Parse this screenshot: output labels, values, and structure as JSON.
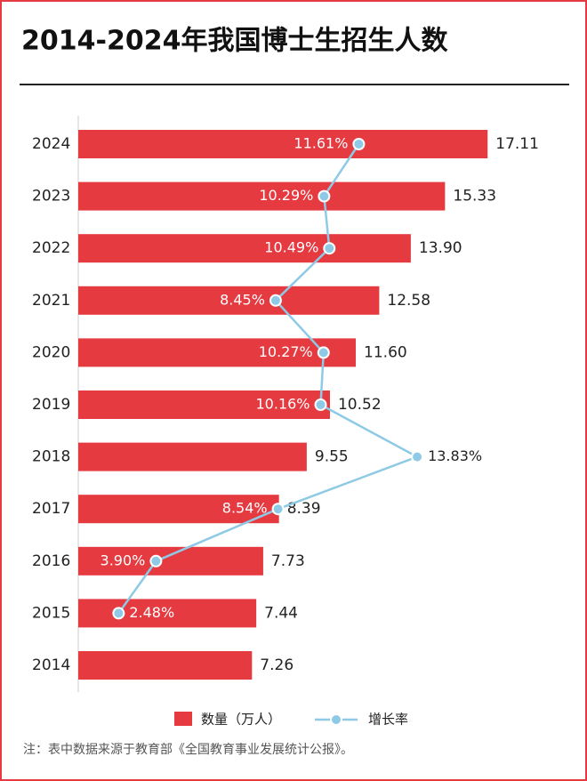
{
  "chart_data": {
    "type": "bar-line",
    "title": "2014-2024年我国博士生招生人数",
    "categories": [
      "2014",
      "2015",
      "2016",
      "2017",
      "2018",
      "2019",
      "2020",
      "2021",
      "2022",
      "2023",
      "2024"
    ],
    "series": [
      {
        "name": "数量（万人）",
        "color": "#e63a41",
        "values": [
          7.26,
          7.44,
          7.73,
          8.39,
          9.55,
          10.52,
          11.6,
          12.58,
          13.9,
          15.33,
          17.11
        ],
        "value_labels": [
          "7.26",
          "7.44",
          "7.73",
          "8.39",
          "9.55",
          "10.52",
          "11.60",
          "12.58",
          "13.90",
          "15.33",
          "17.11"
        ]
      },
      {
        "name": "增长率",
        "color": "#8ecae6",
        "axis": "x2",
        "values": [
          null,
          2.48,
          3.9,
          8.54,
          13.83,
          10.16,
          10.27,
          8.45,
          10.49,
          10.29,
          11.61
        ],
        "value_labels": [
          null,
          "2.48%",
          "3.90%",
          "8.54%",
          "13.83%",
          "10.16%",
          "10.27%",
          "8.45%",
          "10.49%",
          "10.29%",
          "11.61%"
        ]
      }
    ],
    "xlim": [
      0,
      20
    ],
    "x2lim": [
      0,
      19
    ],
    "note": "注：表中数据来源于教育部《全国教育事业发展统计公报》。"
  }
}
